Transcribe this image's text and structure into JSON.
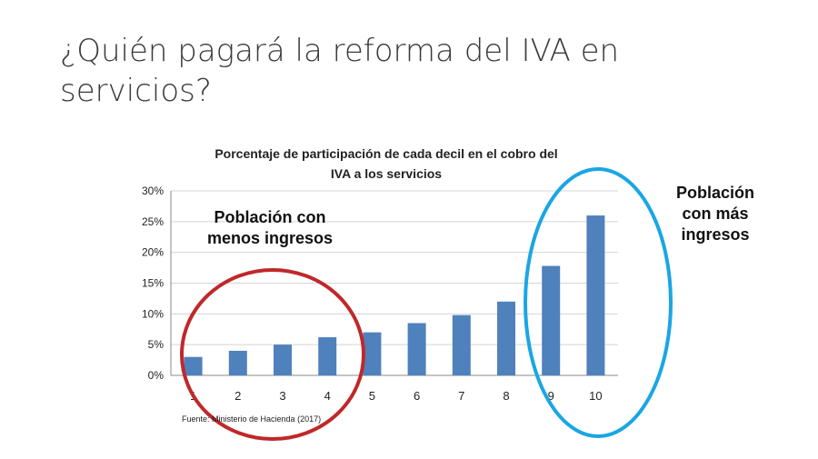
{
  "slide": {
    "title_line1": "¿Quién pagará la reforma del IVA en",
    "title_line2": "servicios?"
  },
  "annotations": {
    "low_income_line1": "Población con",
    "low_income_line2": "menos ingresos",
    "high_income_line1": "Población",
    "high_income_line2": "con más",
    "high_income_line3": "ingresos",
    "low_circle_color": "#c0282a",
    "high_circle_color": "#1aa6e4"
  },
  "chart_data": {
    "type": "bar",
    "title_line1": "Porcentaje de participación de cada decil en el cobro del",
    "title_line2": "IVA a los servicios",
    "categories": [
      "1",
      "2",
      "3",
      "4",
      "5",
      "6",
      "7",
      "8",
      "9",
      "10"
    ],
    "values": [
      3.0,
      4.0,
      5.0,
      6.2,
      7.0,
      8.5,
      9.8,
      12.0,
      17.8,
      26.0
    ],
    "ylim": [
      0,
      30
    ],
    "yticks": [
      "0%",
      "5%",
      "10%",
      "15%",
      "20%",
      "25%",
      "30%"
    ],
    "ytick_values": [
      0,
      5,
      10,
      15,
      20,
      25,
      30
    ],
    "grid": true,
    "bar_color": "#4f81bd",
    "source": "Fuente: Ministerio de Hacienda (2017)"
  }
}
